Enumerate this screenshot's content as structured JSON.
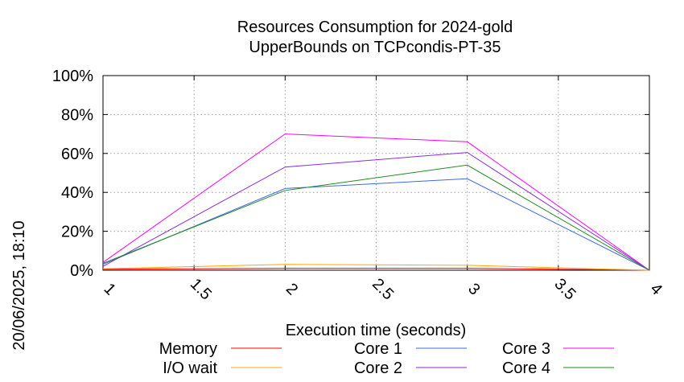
{
  "chart_data": {
    "type": "line",
    "title_line1": "Resources Consumption for 2024-gold",
    "title_line2": "UpperBounds on TCPcondis-PT-35",
    "xlabel": "Execution time (seconds)",
    "ylabel": "",
    "side_label": "20/06/2025, 18:10",
    "xlim": [
      1,
      4
    ],
    "ylim": [
      0,
      100
    ],
    "x_ticks": [
      1,
      1.5,
      2,
      2.5,
      3,
      3.5,
      4
    ],
    "x_tick_labels": [
      "1",
      "1.5",
      "2",
      "2.5",
      "3",
      "3.5",
      "4"
    ],
    "y_ticks": [
      0,
      20,
      40,
      60,
      80,
      100
    ],
    "y_tick_labels": [
      "0%",
      "20%",
      "40%",
      "60%",
      "80%",
      "100%"
    ],
    "grid": true,
    "legend_position": "bottom",
    "series": [
      {
        "name": "Memory",
        "color": "#ff0000",
        "x": [
          1,
          2,
          3,
          4
        ],
        "y": [
          0.5,
          1.0,
          1.0,
          0
        ]
      },
      {
        "name": "I/O wait",
        "color": "#ffa500",
        "x": [
          1,
          2,
          3,
          4
        ],
        "y": [
          0.8,
          3.0,
          2.5,
          0
        ]
      },
      {
        "name": "Core 1",
        "color": "#4169e1",
        "x": [
          1,
          2,
          3,
          4
        ],
        "y": [
          3,
          42,
          47,
          0
        ]
      },
      {
        "name": "Core 2",
        "color": "#8a2be2",
        "x": [
          1,
          2,
          3,
          4
        ],
        "y": [
          2,
          53,
          60.5,
          0
        ]
      },
      {
        "name": "Core 3",
        "color": "#ff00ff",
        "x": [
          1,
          2,
          3,
          4
        ],
        "y": [
          4,
          70,
          66,
          0
        ]
      },
      {
        "name": "Core 4",
        "color": "#228b22",
        "x": [
          1,
          2,
          3,
          4
        ],
        "y": [
          3.5,
          41,
          54,
          0
        ]
      }
    ]
  }
}
